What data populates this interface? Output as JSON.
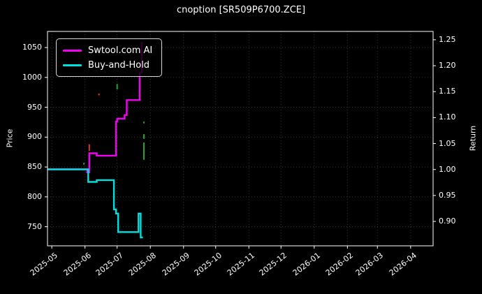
{
  "title": "cnoption [SR509P6700.ZCE]",
  "axes": {
    "left_label": "Price",
    "right_label": "Return"
  },
  "legend": {
    "items": [
      {
        "label": "Swtool.com AI",
        "color": "#f400f4"
      },
      {
        "label": "Buy-and-Hold",
        "color": "#00dfe0"
      }
    ]
  },
  "chart_data": {
    "type": "line",
    "step": "post",
    "title": "cnoption [SR509P6700.ZCE]",
    "xlabel": "",
    "ylabel": "Price",
    "ylabel_right": "Return",
    "grid": true,
    "legend_position": "upper left",
    "background": "#000000",
    "spine_color": "#ffffff",
    "grid_color": "#3d3d3d",
    "x_range": [
      "2025-04-27",
      "2026-04-22"
    ],
    "x_ticks": [
      "2025-05",
      "2025-06",
      "2025-07",
      "2025-08",
      "2025-09",
      "2025-10",
      "2025-11",
      "2025-12",
      "2026-01",
      "2026-02",
      "2026-03",
      "2026-04"
    ],
    "y_left_ticks": [
      750,
      800,
      850,
      900,
      950,
      1000,
      1050
    ],
    "y_left_range": [
      718,
      1077
    ],
    "y_right_ticks": [
      "0.90",
      "0.95",
      "1.00",
      "1.05",
      "1.10",
      "1.15",
      "1.20",
      "1.25"
    ],
    "y_right_range": [
      0.853,
      1.266
    ],
    "base_price": 846,
    "series": [
      {
        "name": "Swtool.com AI",
        "color": "#f400f4",
        "axis": "left",
        "points": [
          [
            "2025-04-27",
            846
          ],
          [
            "2025-06-03",
            841
          ],
          [
            "2025-06-05",
            873
          ],
          [
            "2025-06-12",
            869
          ],
          [
            "2025-06-30",
            926
          ],
          [
            "2025-07-01",
            931
          ],
          [
            "2025-07-08",
            937
          ],
          [
            "2025-07-10",
            962
          ],
          [
            "2025-07-22",
            1008
          ],
          [
            "2025-07-24",
            1058
          ],
          [
            "2025-07-25",
            1058
          ]
        ]
      },
      {
        "name": "Buy-and-Hold",
        "color": "#00dfe0",
        "axis": "left",
        "points": [
          [
            "2025-04-27",
            846
          ],
          [
            "2025-06-04",
            825
          ],
          [
            "2025-06-12",
            828
          ],
          [
            "2025-06-28",
            779
          ],
          [
            "2025-06-30",
            772
          ],
          [
            "2025-07-02",
            741
          ],
          [
            "2025-07-21",
            772
          ],
          [
            "2025-07-23",
            732
          ],
          [
            "2025-07-25",
            732
          ]
        ]
      }
    ],
    "signals": [
      {
        "color": "#e03030",
        "date": "2025-06-05",
        "from": 888,
        "to": 877
      },
      {
        "color": "#e03030",
        "date": "2025-06-14",
        "from": 973,
        "to": 970
      },
      {
        "color": "#28a428",
        "date": "2025-05-31",
        "from": 857,
        "to": 854
      },
      {
        "color": "#28a428",
        "date": "2025-07-01",
        "from": 989,
        "to": 980
      },
      {
        "color": "#28a428",
        "date": "2025-07-26",
        "from": 926,
        "to": 923
      },
      {
        "color": "#28a428",
        "date": "2025-07-26",
        "from": 905,
        "to": 897
      },
      {
        "color": "#28a428",
        "date": "2025-07-26",
        "from": 891,
        "to": 862
      }
    ]
  }
}
